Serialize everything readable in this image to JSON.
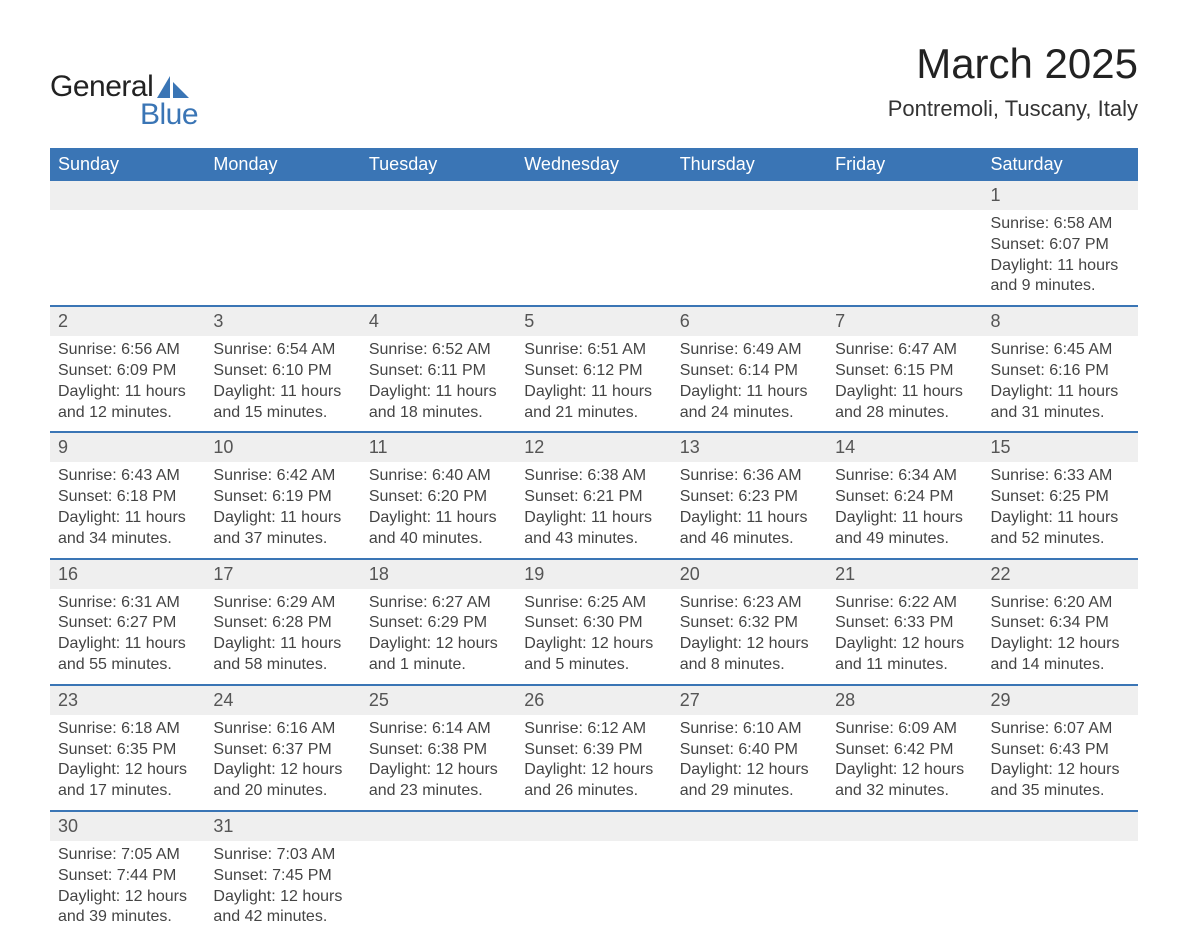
{
  "brand": {
    "text_general": "General",
    "text_blue": "Blue",
    "icon_color": "#3a75b5",
    "text_color_dark": "#222222"
  },
  "title": {
    "month": "March 2025",
    "location": "Pontremoli, Tuscany, Italy"
  },
  "colors": {
    "header_bg": "#3a75b5",
    "header_text": "#ffffff",
    "daynum_bg": "#efefef",
    "row_border": "#3a75b5",
    "body_text": "#444444",
    "daynum_text": "#555555",
    "page_bg": "#ffffff"
  },
  "fonts": {
    "family": "Arial, Helvetica, sans-serif",
    "month_title_size": 42,
    "location_size": 22,
    "weekday_header_size": 18,
    "daynum_size": 18,
    "cell_size": 16,
    "logo_size": 30
  },
  "weekdays": [
    "Sunday",
    "Monday",
    "Tuesday",
    "Wednesday",
    "Thursday",
    "Friday",
    "Saturday"
  ],
  "weeks": [
    {
      "days": [
        null,
        null,
        null,
        null,
        null,
        null,
        {
          "n": "1",
          "sunrise": "Sunrise: 6:58 AM",
          "sunset": "Sunset: 6:07 PM",
          "day1": "Daylight: 11 hours",
          "day2": "and 9 minutes."
        }
      ]
    },
    {
      "days": [
        {
          "n": "2",
          "sunrise": "Sunrise: 6:56 AM",
          "sunset": "Sunset: 6:09 PM",
          "day1": "Daylight: 11 hours",
          "day2": "and 12 minutes."
        },
        {
          "n": "3",
          "sunrise": "Sunrise: 6:54 AM",
          "sunset": "Sunset: 6:10 PM",
          "day1": "Daylight: 11 hours",
          "day2": "and 15 minutes."
        },
        {
          "n": "4",
          "sunrise": "Sunrise: 6:52 AM",
          "sunset": "Sunset: 6:11 PM",
          "day1": "Daylight: 11 hours",
          "day2": "and 18 minutes."
        },
        {
          "n": "5",
          "sunrise": "Sunrise: 6:51 AM",
          "sunset": "Sunset: 6:12 PM",
          "day1": "Daylight: 11 hours",
          "day2": "and 21 minutes."
        },
        {
          "n": "6",
          "sunrise": "Sunrise: 6:49 AM",
          "sunset": "Sunset: 6:14 PM",
          "day1": "Daylight: 11 hours",
          "day2": "and 24 minutes."
        },
        {
          "n": "7",
          "sunrise": "Sunrise: 6:47 AM",
          "sunset": "Sunset: 6:15 PM",
          "day1": "Daylight: 11 hours",
          "day2": "and 28 minutes."
        },
        {
          "n": "8",
          "sunrise": "Sunrise: 6:45 AM",
          "sunset": "Sunset: 6:16 PM",
          "day1": "Daylight: 11 hours",
          "day2": "and 31 minutes."
        }
      ]
    },
    {
      "days": [
        {
          "n": "9",
          "sunrise": "Sunrise: 6:43 AM",
          "sunset": "Sunset: 6:18 PM",
          "day1": "Daylight: 11 hours",
          "day2": "and 34 minutes."
        },
        {
          "n": "10",
          "sunrise": "Sunrise: 6:42 AM",
          "sunset": "Sunset: 6:19 PM",
          "day1": "Daylight: 11 hours",
          "day2": "and 37 minutes."
        },
        {
          "n": "11",
          "sunrise": "Sunrise: 6:40 AM",
          "sunset": "Sunset: 6:20 PM",
          "day1": "Daylight: 11 hours",
          "day2": "and 40 minutes."
        },
        {
          "n": "12",
          "sunrise": "Sunrise: 6:38 AM",
          "sunset": "Sunset: 6:21 PM",
          "day1": "Daylight: 11 hours",
          "day2": "and 43 minutes."
        },
        {
          "n": "13",
          "sunrise": "Sunrise: 6:36 AM",
          "sunset": "Sunset: 6:23 PM",
          "day1": "Daylight: 11 hours",
          "day2": "and 46 minutes."
        },
        {
          "n": "14",
          "sunrise": "Sunrise: 6:34 AM",
          "sunset": "Sunset: 6:24 PM",
          "day1": "Daylight: 11 hours",
          "day2": "and 49 minutes."
        },
        {
          "n": "15",
          "sunrise": "Sunrise: 6:33 AM",
          "sunset": "Sunset: 6:25 PM",
          "day1": "Daylight: 11 hours",
          "day2": "and 52 minutes."
        }
      ]
    },
    {
      "days": [
        {
          "n": "16",
          "sunrise": "Sunrise: 6:31 AM",
          "sunset": "Sunset: 6:27 PM",
          "day1": "Daylight: 11 hours",
          "day2": "and 55 minutes."
        },
        {
          "n": "17",
          "sunrise": "Sunrise: 6:29 AM",
          "sunset": "Sunset: 6:28 PM",
          "day1": "Daylight: 11 hours",
          "day2": "and 58 minutes."
        },
        {
          "n": "18",
          "sunrise": "Sunrise: 6:27 AM",
          "sunset": "Sunset: 6:29 PM",
          "day1": "Daylight: 12 hours",
          "day2": "and 1 minute."
        },
        {
          "n": "19",
          "sunrise": "Sunrise: 6:25 AM",
          "sunset": "Sunset: 6:30 PM",
          "day1": "Daylight: 12 hours",
          "day2": "and 5 minutes."
        },
        {
          "n": "20",
          "sunrise": "Sunrise: 6:23 AM",
          "sunset": "Sunset: 6:32 PM",
          "day1": "Daylight: 12 hours",
          "day2": "and 8 minutes."
        },
        {
          "n": "21",
          "sunrise": "Sunrise: 6:22 AM",
          "sunset": "Sunset: 6:33 PM",
          "day1": "Daylight: 12 hours",
          "day2": "and 11 minutes."
        },
        {
          "n": "22",
          "sunrise": "Sunrise: 6:20 AM",
          "sunset": "Sunset: 6:34 PM",
          "day1": "Daylight: 12 hours",
          "day2": "and 14 minutes."
        }
      ]
    },
    {
      "days": [
        {
          "n": "23",
          "sunrise": "Sunrise: 6:18 AM",
          "sunset": "Sunset: 6:35 PM",
          "day1": "Daylight: 12 hours",
          "day2": "and 17 minutes."
        },
        {
          "n": "24",
          "sunrise": "Sunrise: 6:16 AM",
          "sunset": "Sunset: 6:37 PM",
          "day1": "Daylight: 12 hours",
          "day2": "and 20 minutes."
        },
        {
          "n": "25",
          "sunrise": "Sunrise: 6:14 AM",
          "sunset": "Sunset: 6:38 PM",
          "day1": "Daylight: 12 hours",
          "day2": "and 23 minutes."
        },
        {
          "n": "26",
          "sunrise": "Sunrise: 6:12 AM",
          "sunset": "Sunset: 6:39 PM",
          "day1": "Daylight: 12 hours",
          "day2": "and 26 minutes."
        },
        {
          "n": "27",
          "sunrise": "Sunrise: 6:10 AM",
          "sunset": "Sunset: 6:40 PM",
          "day1": "Daylight: 12 hours",
          "day2": "and 29 minutes."
        },
        {
          "n": "28",
          "sunrise": "Sunrise: 6:09 AM",
          "sunset": "Sunset: 6:42 PM",
          "day1": "Daylight: 12 hours",
          "day2": "and 32 minutes."
        },
        {
          "n": "29",
          "sunrise": "Sunrise: 6:07 AM",
          "sunset": "Sunset: 6:43 PM",
          "day1": "Daylight: 12 hours",
          "day2": "and 35 minutes."
        }
      ]
    },
    {
      "days": [
        {
          "n": "30",
          "sunrise": "Sunrise: 7:05 AM",
          "sunset": "Sunset: 7:44 PM",
          "day1": "Daylight: 12 hours",
          "day2": "and 39 minutes."
        },
        {
          "n": "31",
          "sunrise": "Sunrise: 7:03 AM",
          "sunset": "Sunset: 7:45 PM",
          "day1": "Daylight: 12 hours",
          "day2": "and 42 minutes."
        },
        null,
        null,
        null,
        null,
        null
      ]
    }
  ]
}
